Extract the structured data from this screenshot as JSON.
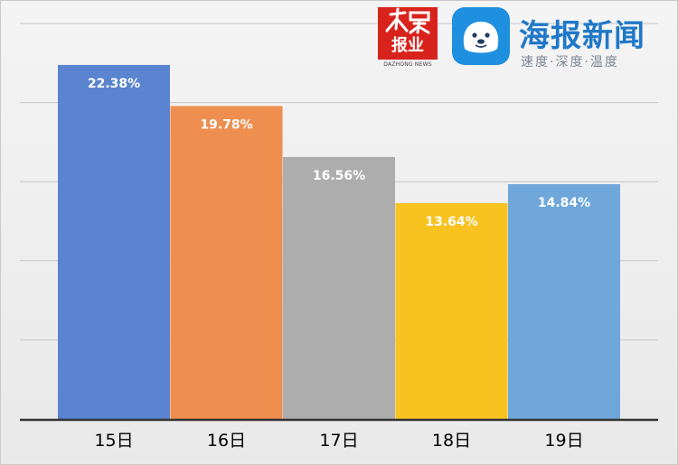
{
  "chart_data": {
    "type": "bar",
    "categories": [
      "15日",
      "16日",
      "17日",
      "18日",
      "19日"
    ],
    "values": [
      22.38,
      19.78,
      16.56,
      13.64,
      14.84
    ],
    "data_labels": [
      "22.38%",
      "19.78%",
      "16.56%",
      "13.64%",
      "14.84%"
    ],
    "colors": [
      "#5a84d0",
      "#ee8e4f",
      "#adadad",
      "#f8c221",
      "#6fa7da"
    ],
    "ylim": [
      0,
      25
    ],
    "grid": true,
    "legend": "none"
  },
  "logos": {
    "dazhong": {
      "text": "报业",
      "subtext": "DAZHONG NEWS",
      "color": "#d8231d"
    },
    "haibao": {
      "name": "海报新闻",
      "slogan": "速度·深度·温度",
      "color": "#1f78c8"
    }
  }
}
